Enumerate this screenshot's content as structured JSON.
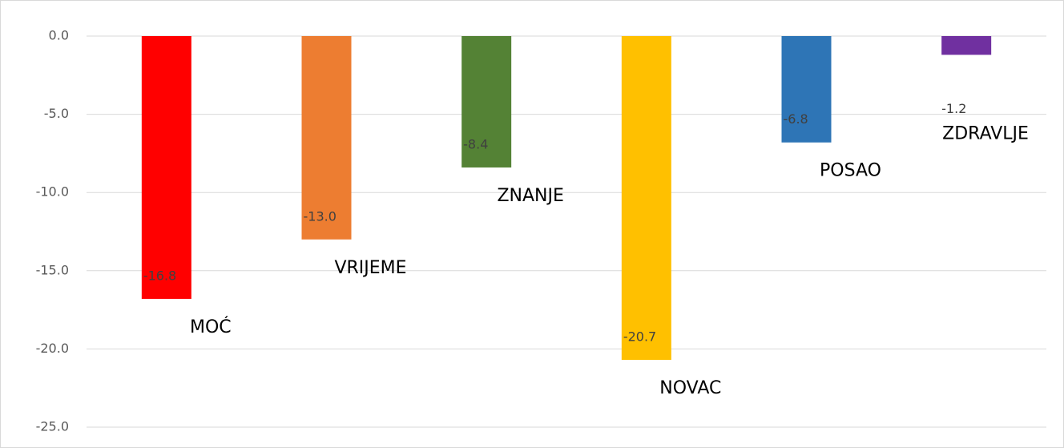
{
  "chart_data": {
    "type": "bar",
    "categories": [
      "MOĆ",
      "VRIJEME",
      "ZNANJE",
      "NOVAC",
      "POSAO",
      "ZDRAVLJE"
    ],
    "values": [
      -16.8,
      -13.0,
      -8.4,
      -20.7,
      -6.8,
      -1.2
    ],
    "value_labels": [
      "-16.8",
      "-13.0",
      "-8.4",
      "-20.7",
      "-6.8",
      "-1.2"
    ],
    "colors": [
      "#ff0000",
      "#ed7d31",
      "#548235",
      "#ffc000",
      "#2e75b6",
      "#7030a0"
    ],
    "ylim": [
      -25,
      0
    ],
    "yticks": [
      {
        "value": 0,
        "label": "0.0"
      },
      {
        "value": -5,
        "label": "-5.0"
      },
      {
        "value": -10,
        "label": "-10.0"
      },
      {
        "value": -15,
        "label": "-15.0"
      },
      {
        "value": -20,
        "label": "-20.0"
      },
      {
        "value": -25,
        "label": "-25.0"
      }
    ],
    "grid": true
  }
}
